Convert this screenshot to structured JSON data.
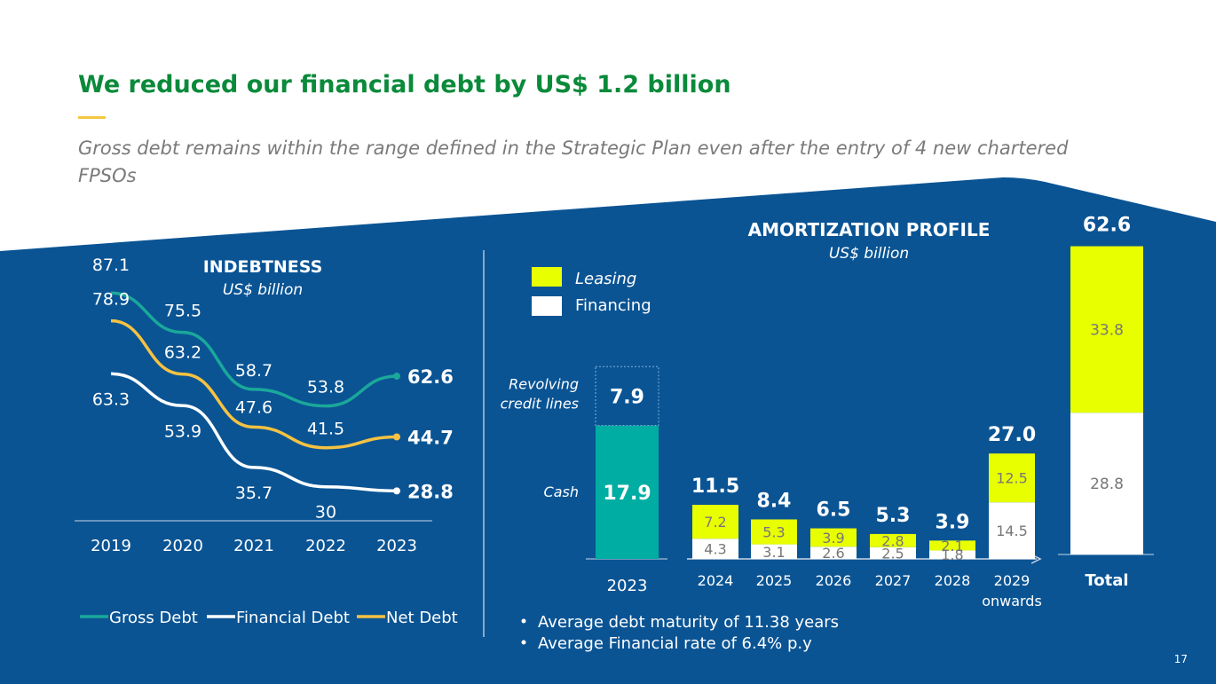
{
  "slide": {
    "title": "We reduced our financial debt by US$ 1.2 billion",
    "subtitle_line1": "Gross debt remains within the range defined in the Strategic Plan even after the entry of 4 new chartered",
    "subtitle_line2": "FPSOs",
    "page_number": "17",
    "bullets": [
      "Average debt maturity of  11.38  years",
      "Average Financial rate of 6.4% p.y"
    ]
  },
  "colors": {
    "title_green": "#0a8a3a",
    "accent_yellow": "#f5c842",
    "background_blue": "#0a5494",
    "gross_debt": "#1aa89a",
    "financial_debt": "#ffffff",
    "net_debt": "#f5c242",
    "leasing": "#e8ff00",
    "financing": "#ffffff",
    "cash": "#00ada2",
    "revolving": "#0a5494"
  },
  "chart_data": [
    {
      "type": "line",
      "title": "INDEBTNESS",
      "subtitle": "US$ billion",
      "categories": [
        "2019",
        "2020",
        "2021",
        "2022",
        "2023"
      ],
      "series": [
        {
          "name": "Gross Debt",
          "values": [
            87.1,
            75.5,
            58.7,
            53.8,
            62.6
          ],
          "labels": [
            "87.1",
            "75.5",
            "58.7",
            "53.8",
            "62.6"
          ]
        },
        {
          "name": "Net Debt",
          "values": [
            78.9,
            63.2,
            47.6,
            41.5,
            44.7
          ],
          "labels": [
            "78.9",
            "63.2",
            "47.6",
            "41.5",
            "44.7"
          ]
        },
        {
          "name": "Financial Debt",
          "values": [
            63.3,
            53.9,
            35.7,
            30.0,
            28.8
          ],
          "labels": [
            "63.3",
            "53.9",
            "35.7",
            "30",
            "28.8"
          ]
        }
      ],
      "ylim": [
        20,
        95
      ],
      "legend": "bottom"
    },
    {
      "type": "bar",
      "title": "AMORTIZATION PROFILE",
      "subtitle": "US$ billion",
      "legend": [
        "Leasing",
        "Financing"
      ],
      "liquidity": {
        "category": "2023",
        "segments": [
          {
            "name": "Cash",
            "value": 17.9,
            "label": "17.9"
          },
          {
            "name": "Revolving credit lines",
            "value": 7.9,
            "label": "7.9"
          }
        ],
        "label_cash": "Cash",
        "label_revolving_1": "Revolving",
        "label_revolving_2": "credit lines"
      },
      "categories": [
        "2024",
        "2025",
        "2026",
        "2027",
        "2028",
        "2029"
      ],
      "category_notes": [
        "",
        "",
        "",
        "",
        "",
        "onwards"
      ],
      "financing": [
        4.3,
        3.1,
        2.6,
        2.5,
        1.8,
        14.5
      ],
      "financing_labels": [
        "4.3",
        "3.1",
        "2.6",
        "2.5",
        "1.8",
        "14.5"
      ],
      "leasing": [
        7.2,
        5.3,
        3.9,
        2.8,
        2.1,
        12.5
      ],
      "leasing_labels": [
        "7.2",
        "5.3",
        "3.9",
        "2.8",
        "2.1",
        "12.5"
      ],
      "totals": [
        "11.5",
        "8.4",
        "6.5",
        "5.3",
        "3.9",
        "27.0"
      ],
      "total_bar": {
        "category": "Total",
        "financing": 28.8,
        "financing_label": "28.8",
        "leasing": 33.8,
        "leasing_label": "33.8",
        "total_label": "62.6"
      }
    }
  ]
}
